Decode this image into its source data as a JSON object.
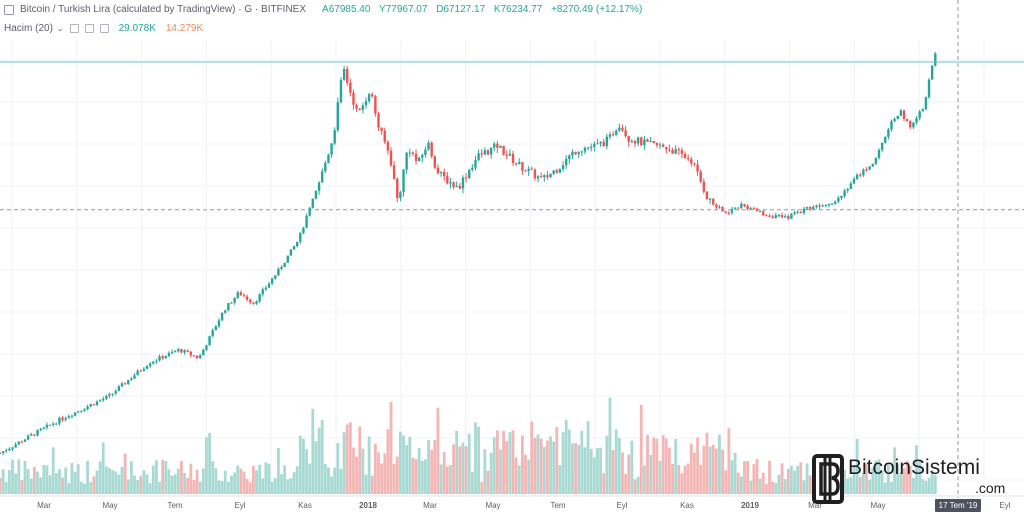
{
  "header": {
    "title": "Bitcoin / Turkish Lira (calculated by TradingView) · G · BITFINEX",
    "ohlc": {
      "open": "A67985.40",
      "high": "Y77967.07",
      "low": "D67127.17",
      "close": "K76234.77",
      "change": "+8270.49 (+12.17%)"
    }
  },
  "volume_header": {
    "label": "Hacim (20)",
    "value1": "29.078K",
    "value2": "14.279K"
  },
  "cursor_date": "17 Tem '19",
  "watermark": {
    "text": "BitcoinSistemi",
    "suffix": ".com"
  },
  "colors": {
    "up": "#26a69a",
    "down": "#ef5350",
    "up_vol": "#a8d9d3",
    "down_vol": "#f4b6b4",
    "grid": "#f0f3fa",
    "text": "#5d606b",
    "cursor": "#9598a1",
    "hline": "#6ec3c9"
  },
  "chart_data": {
    "type": "candlestick",
    "x_axis_labels": [
      "Mar",
      "May",
      "Tem",
      "Eyl",
      "Kas",
      "2018",
      "Mar",
      "May",
      "Tem",
      "Eyl",
      "Kas",
      "2019",
      "Mar",
      "May",
      "Eyl"
    ],
    "y_axis": "log",
    "price_path": [
      [
        0.0,
        600
      ],
      [
        0.06,
        900
      ],
      [
        0.11,
        1200
      ],
      [
        0.15,
        1800
      ],
      [
        0.18,
        2100
      ],
      [
        0.2,
        1900
      ],
      [
        0.225,
        3400
      ],
      [
        0.24,
        4200
      ],
      [
        0.255,
        3700
      ],
      [
        0.28,
        5500
      ],
      [
        0.3,
        8000
      ],
      [
        0.32,
        15500
      ],
      [
        0.335,
        28000
      ],
      [
        0.345,
        65000
      ],
      [
        0.35,
        52000
      ],
      [
        0.36,
        36000
      ],
      [
        0.372,
        50000
      ],
      [
        0.38,
        32000
      ],
      [
        0.392,
        22000
      ],
      [
        0.4,
        12500
      ],
      [
        0.41,
        25000
      ],
      [
        0.42,
        20000
      ],
      [
        0.43,
        26000
      ],
      [
        0.44,
        18000
      ],
      [
        0.46,
        15000
      ],
      [
        0.48,
        22000
      ],
      [
        0.5,
        25000
      ],
      [
        0.52,
        20000
      ],
      [
        0.545,
        16500
      ],
      [
        0.56,
        19000
      ],
      [
        0.58,
        24000
      ],
      [
        0.6,
        25000
      ],
      [
        0.612,
        27000
      ],
      [
        0.622,
        33000
      ],
      [
        0.632,
        27500
      ],
      [
        0.65,
        25500
      ],
      [
        0.67,
        24500
      ],
      [
        0.695,
        21000
      ],
      [
        0.712,
        13000
      ],
      [
        0.728,
        11000
      ],
      [
        0.745,
        12200
      ],
      [
        0.77,
        10800
      ],
      [
        0.79,
        10400
      ],
      [
        0.81,
        11700
      ],
      [
        0.84,
        12800
      ],
      [
        0.86,
        17000
      ],
      [
        0.88,
        21000
      ],
      [
        0.895,
        33000
      ],
      [
        0.905,
        38000
      ],
      [
        0.915,
        31000
      ],
      [
        0.928,
        40000
      ],
      [
        0.937,
        66000
      ],
      [
        0.94,
        76234
      ]
    ],
    "horizontal_line_value": 76234.77,
    "dashed_line_value": 11500
  }
}
